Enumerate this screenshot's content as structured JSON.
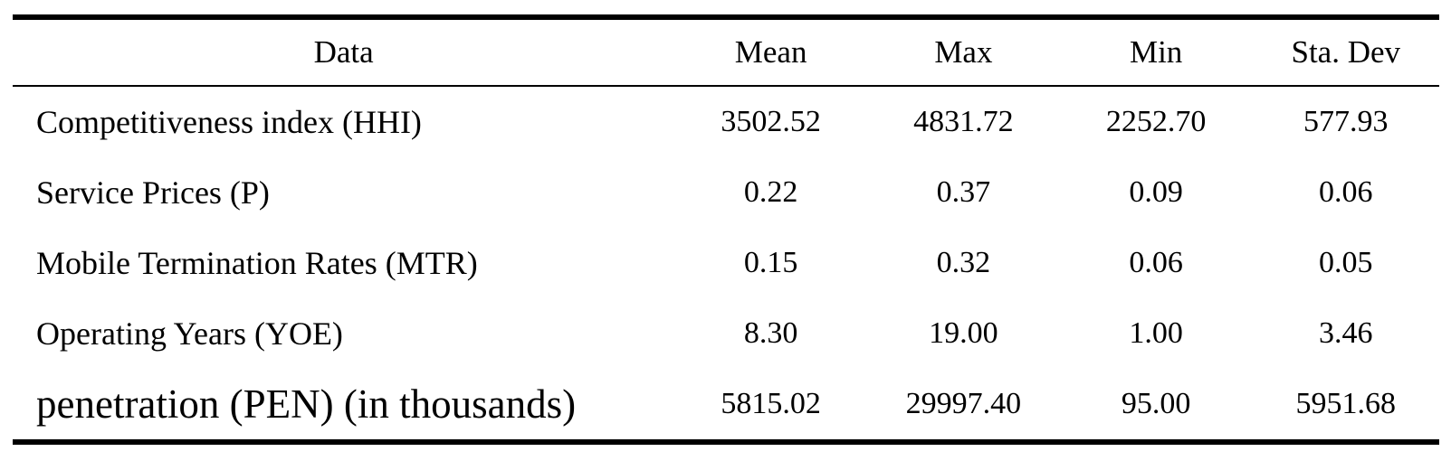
{
  "page": {
    "background_color": "#ffffff",
    "text_color": "#000000"
  },
  "table": {
    "columns": [
      "Data",
      "Mean",
      "Max",
      "Min",
      "Sta. Dev"
    ],
    "rows": [
      {
        "label": "Competitiveness index (HHI)",
        "values": [
          "3502.52",
          "4831.72",
          "2252.70",
          "577.93"
        ]
      },
      {
        "label": "Service Prices (P)",
        "values": [
          "0.22",
          "0.37",
          "0.09",
          "0.06"
        ]
      },
      {
        "label": "Mobile Termination Rates (MTR)",
        "values": [
          "0.15",
          "0.32",
          "0.06",
          "0.05"
        ]
      },
      {
        "label": "Operating Years (YOE)",
        "values": [
          "8.30",
          "19.00",
          "1.00",
          "3.46"
        ]
      },
      {
        "label": "penetration (PEN) (in thousands)",
        "values": [
          "5815.02",
          "29997.40",
          "95.00",
          "5951.68"
        ]
      }
    ]
  },
  "chart_data": {
    "type": "table",
    "columns": [
      "Data",
      "Mean",
      "Max",
      "Min",
      "Sta. Dev"
    ],
    "rows": [
      [
        "Competitiveness index (HHI)",
        3502.52,
        4831.72,
        2252.7,
        577.93
      ],
      [
        "Service Prices (P)",
        0.22,
        0.37,
        0.09,
        0.06
      ],
      [
        "Mobile Termination Rates (MTR)",
        0.15,
        0.32,
        0.06,
        0.05
      ],
      [
        "Operating Years (YOE)",
        8.3,
        19.0,
        1.0,
        3.46
      ],
      [
        "penetration (PEN) (in thousands)",
        5815.02,
        29997.4,
        95.0,
        5951.68
      ]
    ]
  }
}
